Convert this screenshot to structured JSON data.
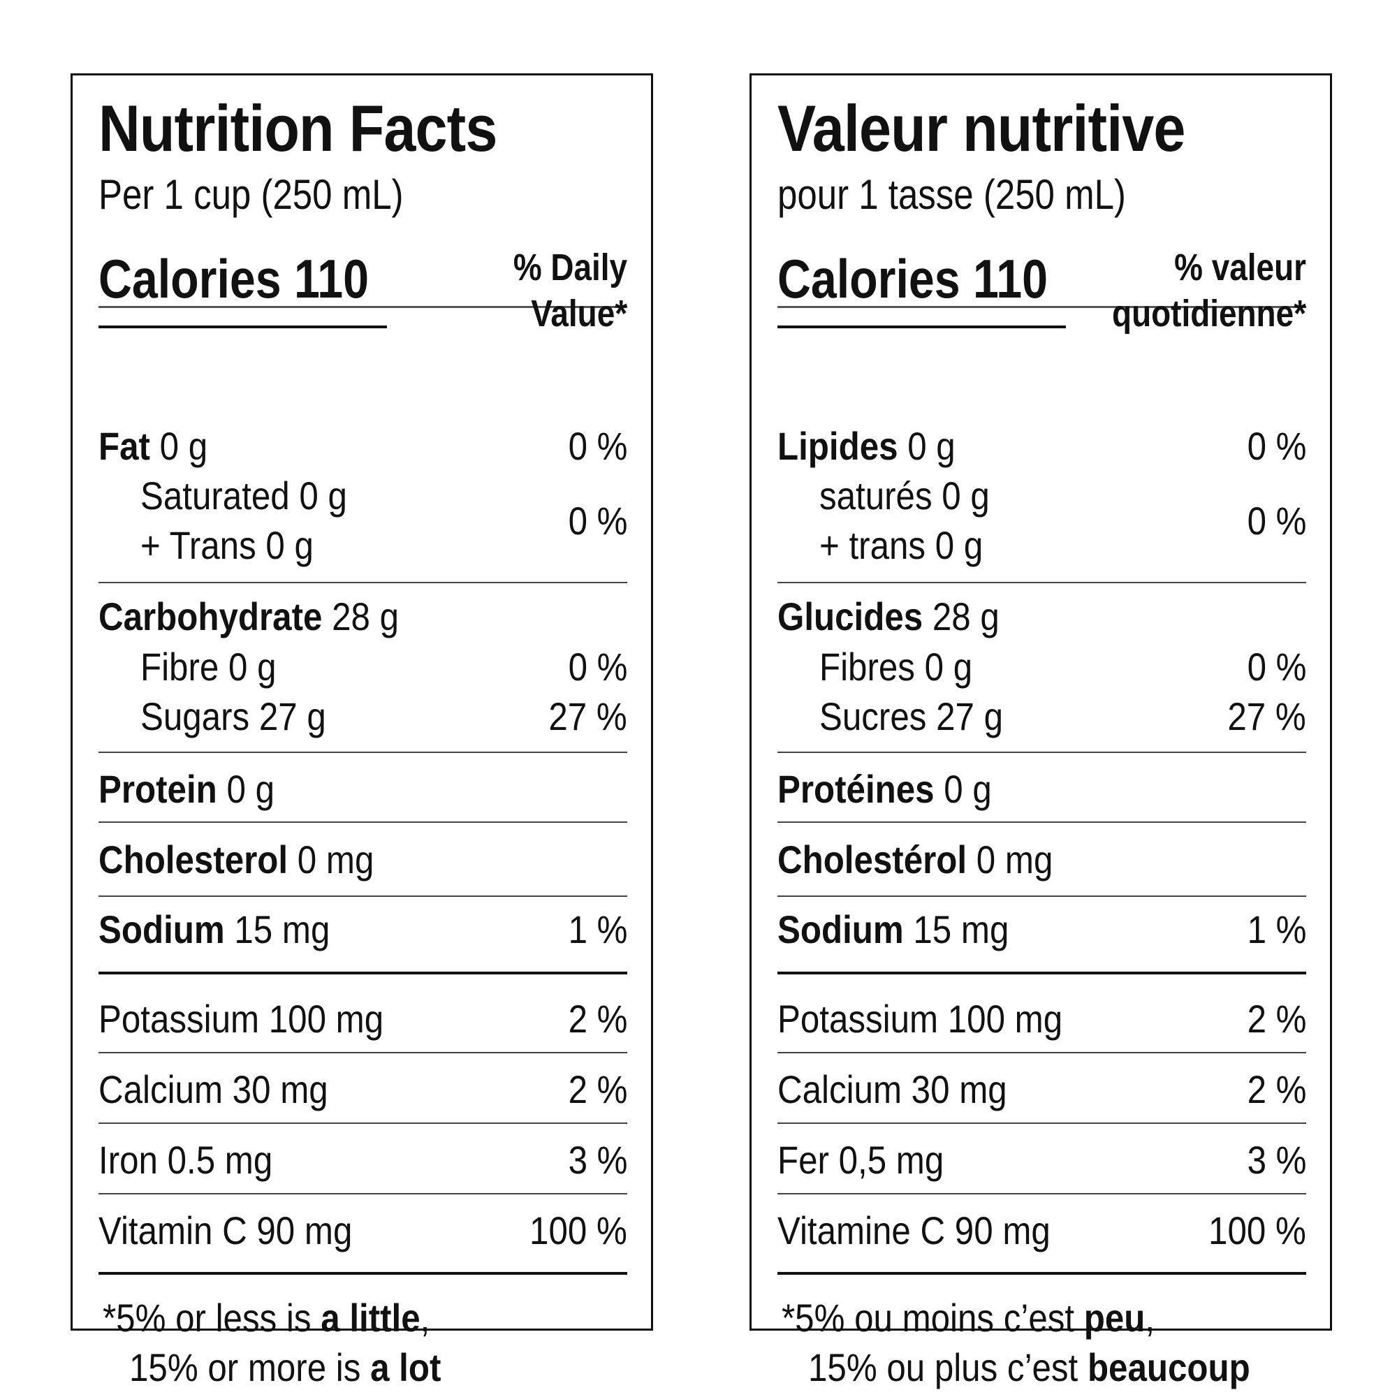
{
  "panels": [
    {
      "title": "Nutrition Facts",
      "serving": "Per 1 cup (250 mL)",
      "calories_label": "Calories 110",
      "dv_header": "% Daily\nValue*",
      "fat": {
        "name": "Fat",
        "amount": "0 g",
        "dv": "0 %"
      },
      "saturated": {
        "label": "Saturated 0 g"
      },
      "trans": {
        "label": "+ Trans 0 g"
      },
      "sat_trans_dv": "0 %",
      "carbohydrate": {
        "name": "Carbohydrate",
        "amount": "28 g"
      },
      "fibre": {
        "label": "Fibre 0 g",
        "dv": "0 %"
      },
      "sugars": {
        "label": "Sugars 27 g",
        "dv": "27 %"
      },
      "protein": {
        "name": "Protein",
        "amount": "0 g"
      },
      "cholesterol": {
        "name": "Cholesterol",
        "amount": "0 mg"
      },
      "sodium": {
        "name": "Sodium",
        "amount": "15 mg",
        "dv": "1 %"
      },
      "potassium": {
        "label": "Potassium 100 mg",
        "dv": "2 %"
      },
      "calcium": {
        "label": "Calcium 30 mg",
        "dv": "2 %"
      },
      "iron": {
        "label": "Iron 0.5 mg",
        "dv": "3 %"
      },
      "vitamin_c": {
        "label": "Vitamin C 90 mg",
        "dv": "100 %"
      },
      "footnote": {
        "star": "*",
        "line1_pre": "5% or less is ",
        "line1_bold": "a little",
        "line1_post": ",",
        "line2_pre": "15% or more is ",
        "line2_bold": "a lot"
      }
    },
    {
      "title": "Valeur nutritive",
      "serving": "pour 1 tasse (250 mL)",
      "calories_label": "Calories 110",
      "dv_header": "% valeur\nquotidienne*",
      "fat": {
        "name": "Lipides",
        "amount": "0 g",
        "dv": "0 %"
      },
      "saturated": {
        "label": "saturés 0 g"
      },
      "trans": {
        "label": "+ trans 0 g"
      },
      "sat_trans_dv": "0 %",
      "carbohydrate": {
        "name": "Glucides",
        "amount": "28 g"
      },
      "fibre": {
        "label": "Fibres 0 g",
        "dv": "0 %"
      },
      "sugars": {
        "label": "Sucres 27 g",
        "dv": "27 %"
      },
      "protein": {
        "name": "Protéines",
        "amount": "0 g"
      },
      "cholesterol": {
        "name": "Cholestérol",
        "amount": "0 mg"
      },
      "sodium": {
        "name": "Sodium",
        "amount": "15 mg",
        "dv": "1 %"
      },
      "potassium": {
        "label": "Potassium 100 mg",
        "dv": "2 %"
      },
      "calcium": {
        "label": "Calcium 30 mg",
        "dv": "2 %"
      },
      "iron": {
        "label": "Fer 0,5 mg",
        "dv": "3 %"
      },
      "vitamin_c": {
        "label": "Vitamine C 90 mg",
        "dv": "100 %"
      },
      "footnote": {
        "star": "*",
        "line1_pre": "5% ou moins c’est ",
        "line1_bold": "peu",
        "line1_post": ",",
        "line2_pre": "15% ou plus c’est ",
        "line2_bold": "beaucoup"
      }
    }
  ]
}
